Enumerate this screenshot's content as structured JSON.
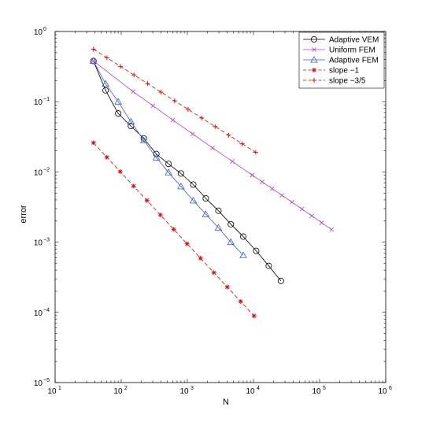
{
  "chart_data": {
    "type": "line",
    "title": "",
    "xlabel": "N",
    "ylabel": "error",
    "xscale": "log",
    "yscale": "log",
    "xlim": [
      10,
      1000000
    ],
    "ylim": [
      1e-05,
      1
    ],
    "grid": false,
    "legend_position": "top-right",
    "x_ticks": [
      {
        "base": "10",
        "exp": "1",
        "value": 10
      },
      {
        "base": "10",
        "exp": "2",
        "value": 100
      },
      {
        "base": "10",
        "exp": "3",
        "value": 1000
      },
      {
        "base": "10",
        "exp": "4",
        "value": 10000
      },
      {
        "base": "10",
        "exp": "5",
        "value": 100000
      },
      {
        "base": "10",
        "exp": "6",
        "value": 1000000
      }
    ],
    "y_ticks": [
      {
        "base": "10",
        "exp": "−5",
        "value": 1e-05
      },
      {
        "base": "10",
        "exp": "−4",
        "value": 0.0001
      },
      {
        "base": "10",
        "exp": "−3",
        "value": 0.001
      },
      {
        "base": "10",
        "exp": "−2",
        "value": 0.01
      },
      {
        "base": "10",
        "exp": "−1",
        "value": 0.1
      },
      {
        "base": "10",
        "exp": "0",
        "value": 1
      }
    ],
    "series": [
      {
        "name": "Adaptive VEM",
        "color": "#000000",
        "marker": "circle",
        "dash": "solid",
        "x": [
          38,
          58,
          90,
          140,
          220,
          340,
          520,
          800,
          1230,
          1900,
          2950,
          4550,
          7000,
          11000,
          17000,
          26000
        ],
        "y": [
          0.38,
          0.145,
          0.068,
          0.045,
          0.03,
          0.018,
          0.013,
          0.0095,
          0.0066,
          0.0042,
          0.0028,
          0.0018,
          0.0012,
          0.00075,
          0.00046,
          0.00028
        ]
      },
      {
        "name": "Uniform FEM",
        "color": "#bf40bf",
        "marker": "x",
        "dash": "solid",
        "x": [
          38,
          150,
          600,
          2400,
          9600,
          38400,
          153600
        ],
        "y": [
          0.38,
          0.14,
          0.055,
          0.022,
          0.009,
          0.0037,
          0.0015
        ]
      },
      {
        "name": "Adaptive FEM",
        "color": "#3b5bdb",
        "marker": "triangle",
        "dash": "solid",
        "x": [
          38,
          58,
          90,
          140,
          220,
          340,
          520,
          800,
          1230,
          1900,
          2950,
          4550,
          7000
        ],
        "y": [
          0.38,
          0.18,
          0.1,
          0.052,
          0.028,
          0.016,
          0.0098,
          0.0062,
          0.0039,
          0.0025,
          0.0016,
          0.001,
          0.00065
        ]
      },
      {
        "name": "slope −1",
        "color": "#e60000",
        "marker": "asterisk",
        "dash": "dashed",
        "x": [
          38,
          10200
        ],
        "y": [
          0.026,
          8.9e-05
        ]
      },
      {
        "name": "slope −3/5",
        "color": "#e60000",
        "marker": "plus",
        "dash": "dashed",
        "x": [
          38,
          10800
        ],
        "y": [
          0.56,
          0.019
        ]
      }
    ]
  }
}
